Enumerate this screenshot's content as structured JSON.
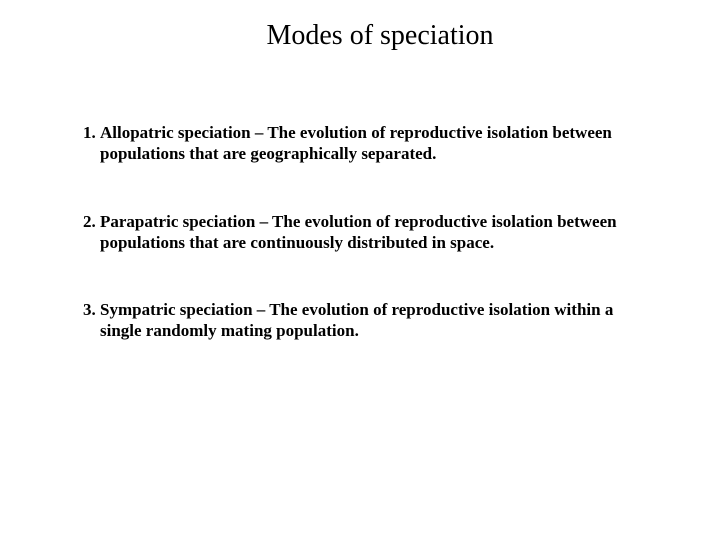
{
  "title": "Modes of speciation",
  "items": [
    "Allopatric speciation – The evolution of reproductive isolation between populations that are geographically separated.",
    "Parapatric speciation – The evolution of reproductive isolation between populations that are continuously distributed in space.",
    "Sympatric speciation – The evolution of reproductive isolation within a single randomly mating population."
  ]
}
